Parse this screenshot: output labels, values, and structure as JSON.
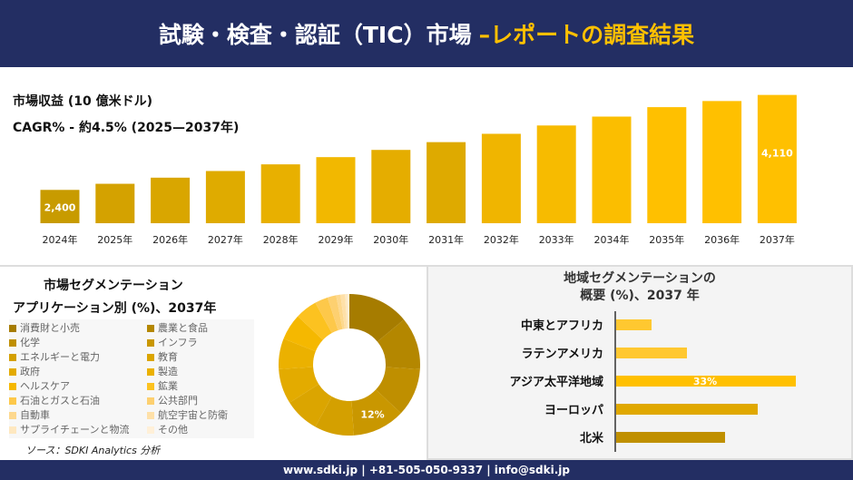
{
  "header": {
    "title": "試験・検査・認証（TIC）市場",
    "title_accent": "–レポートの調査結果"
  },
  "chart_data": [
    {
      "type": "bar",
      "title": "市場収益 (10 億米ドル)",
      "subtitle": "CAGR% - 約4.5% (2025—2037年)",
      "categories": [
        "2024年",
        "2025年",
        "2026年",
        "2027年",
        "2028年",
        "2029年",
        "2030年",
        "2031年",
        "2032年",
        "2033年",
        "2034年",
        "2035年",
        "2036年",
        "2037年"
      ],
      "values": [
        2400,
        2510,
        2620,
        2740,
        2860,
        2990,
        3120,
        3260,
        3410,
        3560,
        3720,
        3890,
        4000,
        4110
      ],
      "data_labels": {
        "0": "2,400",
        "13": "4,110"
      },
      "ylim": [
        1800,
        4300
      ],
      "colors": [
        "#c89b00",
        "#d4a200",
        "#d9a600",
        "#dfab00",
        "#e8b000",
        "#f2b800",
        "#e5ad00",
        "#deaa00",
        "#f0b500",
        "#f7bb00",
        "#fbbe00",
        "#ffc000",
        "#ffc000",
        "#ffc000"
      ]
    },
    {
      "type": "pie",
      "title": "市場セグメンテーション",
      "subtitle": "アプリケーション別 (%)、2037年",
      "labels": [
        "消費財と小売",
        "農業と食品",
        "化学",
        "インフラ",
        "エネルギーと電力",
        "教育",
        "政府",
        "製造",
        "ヘルスケア",
        "鉱業",
        "石油とガスと石油",
        "公共部門",
        "自動車",
        "航空宇宙と防衛",
        "サプライチェーンと物流",
        "その他"
      ],
      "values": [
        14,
        12,
        11,
        12,
        9,
        8,
        8,
        7,
        6,
        5,
        3,
        2,
        1,
        1,
        0.5,
        0.5
      ],
      "colors": [
        "#a67c00",
        "#b48700",
        "#bf8f00",
        "#c99700",
        "#d4a000",
        "#dba500",
        "#e3ab00",
        "#ebb100",
        "#f5b800",
        "#fcc220",
        "#fdc84a",
        "#fdd070",
        "#fdd88e",
        "#fee0a8",
        "#fee8c0",
        "#fff0d8"
      ],
      "legend_order": [
        0,
        2,
        4,
        6,
        8,
        10,
        12,
        14,
        1,
        3,
        5,
        7,
        9,
        11,
        13,
        15
      ],
      "data_labels": {
        "3": "12%"
      },
      "source": "ソース：SDKI Analytics 分析"
    },
    {
      "type": "bar",
      "orientation": "horizontal",
      "title": "地域セグメンテーションの",
      "title2": "概要 (%)、2037 年",
      "categories": [
        "中東とアフリカ",
        "ラテンアメリカ",
        "アジア太平洋地域",
        "ヨーロッパ",
        "北米"
      ],
      "values": [
        6.5,
        13,
        33,
        26,
        20
      ],
      "data_labels": {
        "2": "33%"
      },
      "xlim": [
        0,
        35
      ],
      "colors": [
        "#ffc830",
        "#ffc830",
        "#ffc000",
        "#e0a800",
        "#c09000"
      ]
    }
  ],
  "footer": {
    "text": "www.sdki.jp | +81-505-050-9337 | info@sdki.jp"
  }
}
